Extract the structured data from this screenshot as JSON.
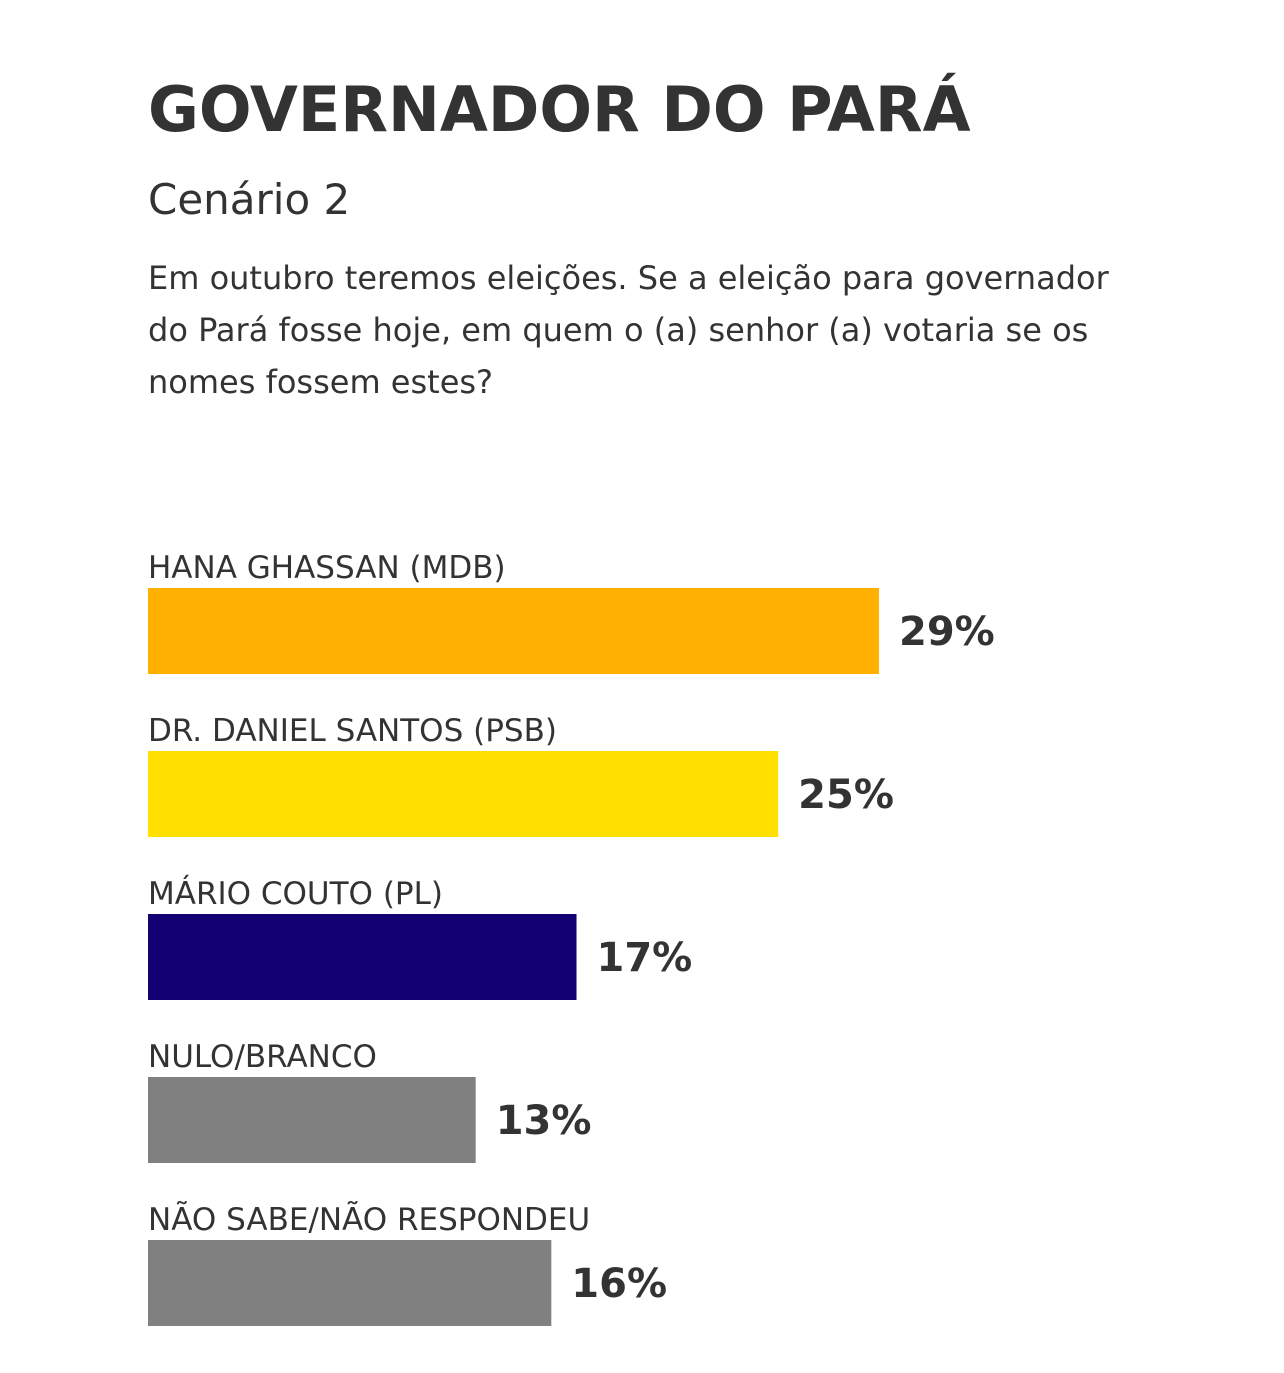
{
  "chart_data": {
    "type": "bar",
    "orientation": "horizontal",
    "title": "GOVERNADOR DO PARÁ",
    "subtitle": "Cenário 2",
    "question": "Em outubro teremos eleições. Se a eleição para governador do Pará fosse hoje, em quem o (a) senhor (a) votaria se os nomes fossem estes?",
    "categories": [
      "HANA GHASSAN (MDB)",
      "DR. DANIEL SANTOS (PSB)",
      "MÁRIO COUTO (PL)",
      "NULO/BRANCO",
      "NÃO SABE/NÃO RESPONDEU"
    ],
    "values": [
      29,
      25,
      17,
      13,
      16
    ],
    "value_labels": [
      "29%",
      "25%",
      "17%",
      "13%",
      "16%"
    ],
    "colors": [
      "#FFB000",
      "#FFE000",
      "#130072",
      "#808080",
      "#808080"
    ],
    "unit": "%",
    "grid": false,
    "legend": "none"
  }
}
